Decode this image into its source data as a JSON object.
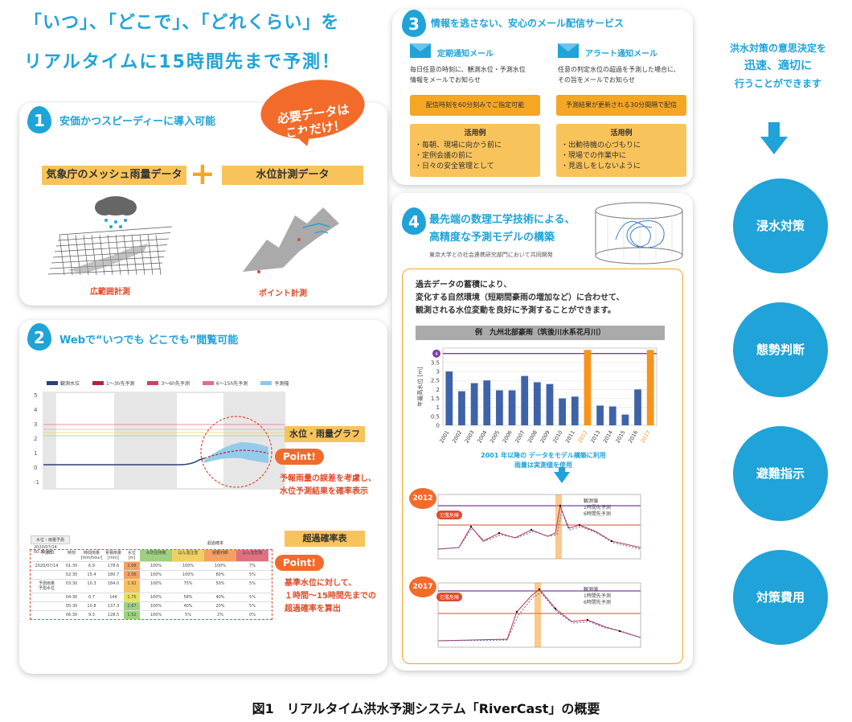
{
  "headline": {
    "line1": "「いつ」、「どこで」、「どれくらい」を",
    "line2": "リアルタイムに15時間先まで予測！"
  },
  "card1": {
    "number": "1",
    "title": "安価かつスピーディーに導入可能",
    "bubble": "必要データは\nこれだけ！",
    "data_a": "気象庁のメッシュ雨量データ",
    "plus": "+",
    "data_b": "水位計測データ",
    "caption_a": "広範囲計測",
    "caption_b": "ポイント計測"
  },
  "card2": {
    "number": "2",
    "title": "Webで“いつでも どこでも”閲覧可能",
    "legend": [
      "観測水位",
      "1〜3h先予測",
      "3〜6h先予測",
      "6〜15h先予測",
      "予測幅"
    ],
    "graph_label": "水位・雨量グラフ",
    "point1": "Point!",
    "point1_text": "予報雨量の誤差を考慮し、\n水位予測結果を確率表示",
    "table_label": "超過確率表",
    "point2": "Point!",
    "point2_text": "基準水位に対して、\n１時間〜15時間先までの\n超過確率を算出",
    "yticks": [
      "5",
      "4",
      "3",
      "2",
      "1",
      "0",
      "-1"
    ],
    "table_tab": "水位・雨量予測",
    "table_date": "2020/07/14 00:30 現在",
    "table_header": [
      "予測日",
      "時刻",
      "時間雨量\n[mm/hour]",
      "累積雨量\n[mm]",
      "水位\n[m]",
      "水防団待機",
      "はん濫注意",
      "避難判断",
      "はん濫危険"
    ],
    "table_rows": [
      [
        "2020/07/14",
        "01:30",
        "6.9",
        "178.6",
        "2.08",
        "100%",
        "100%",
        "100%",
        "7%"
      ],
      [
        "",
        "02:30",
        "15.4",
        "180.7",
        "2.06",
        "100%",
        "100%",
        "80%",
        "5%"
      ],
      [
        "予測雨量\n予測水位",
        "03:30",
        "10.3",
        "184.0",
        "1.92",
        "100%",
        "75%",
        "50%",
        "5%"
      ],
      [
        "",
        "04:30",
        "0.7",
        "144",
        "1.75",
        "100%",
        "58%",
        "40%",
        "5%"
      ],
      [
        "",
        "05:30",
        "10.8",
        "137.3",
        "1.67",
        "100%",
        "40%",
        "20%",
        "5%"
      ],
      [
        "",
        "06:30",
        "9.3",
        "128.5",
        "1.52",
        "100%",
        "5%",
        "2%",
        "0%"
      ]
    ],
    "table_title_right": "超過確率"
  },
  "card3": {
    "number": "3",
    "title": "情報を逃さない、安心のメール配信サービス",
    "left_title": "定期通知メール",
    "left_text": "毎日任意の時刻に、観測水位・予測水位\n情報をメールでお知らせ",
    "left_btn": "配信時刻を60分刻みでご指定可能",
    "left_example_title": "活用例",
    "left_examples": [
      "・毎朝、現場に向かう前に",
      "・定例会議の前に",
      "・日々の安全管理として"
    ],
    "right_title": "アラート通知メール",
    "right_text": "任意の判定水位の超過を予測した場合に、\nその旨をメールでお知らせ",
    "right_btn": "予測結果が更新される30分間隔で配信",
    "right_example_title": "活用例",
    "right_examples": [
      "・出動待機の心づもりに",
      "・現場での作業中に",
      "・見逃しをしないように"
    ]
  },
  "card4": {
    "number": "4",
    "title_line1": "最先端の数理工学技術による、",
    "title_line2": "高精度な予測モデルの構築",
    "subtitle": "東京大学との社会連携研究部門において共同開発",
    "desc": "過去データの蓄積により、\n変化する自然環境（短期間豪雨の増加など）に合わせて、\n観測される水位変動を良好に予測することができます。",
    "example_header": "例　九州北部豪雨（筑後川水系花月川）",
    "chart_note1": "2001 年以降の データをモデル構築に利用",
    "chart_note2": "雨量は実測値を使用",
    "year2012": "2012",
    "year2017": "2017",
    "flood_label": "氾濫危険",
    "legend_obs": "観測値",
    "legend_1h": "1時間先予測",
    "legend_6h": "6時間先予測"
  },
  "right_panel": {
    "text_line1": "洪水対策の意思決定を",
    "text_line2": "迅速、適切に",
    "text_line3": "行うことができます",
    "circles": [
      "浸水対策",
      "態勢判断",
      "避難指示",
      "対策費用"
    ]
  },
  "caption": "図1　リアルタイム洪水予測システム「RiverCast」の概要",
  "chart_data": [
    {
      "type": "bar",
      "title": "",
      "ylabel": "年最高水位 [m]",
      "categories": [
        "2001",
        "2002",
        "2003",
        "2004",
        "2005",
        "2006",
        "2007",
        "2008",
        "2009",
        "2010",
        "2011",
        "2012",
        "2013",
        "2014",
        "2015",
        "2016",
        "2017"
      ],
      "values": [
        3.0,
        1.9,
        2.35,
        2.5,
        1.95,
        1.95,
        2.75,
        2.4,
        2.3,
        1.5,
        1.6,
        4.2,
        1.1,
        1.05,
        0.6,
        2.0,
        4.2
      ],
      "highlight": [
        "2012",
        "2017"
      ],
      "bar_color": "#3f63a8",
      "highlight_color": "#f7941d",
      "reference_line": 4,
      "reference_color": "#7b3fa0",
      "ylim": [
        0,
        4.3
      ],
      "yticks": [
        0,
        0.5,
        1,
        1.5,
        2,
        2.5,
        3,
        3.5,
        4
      ]
    }
  ],
  "colors": {
    "accent": "#1fa3d8",
    "orange": "#f5a623",
    "light_orange": "#f9c35b",
    "red": "#e04a2a"
  }
}
